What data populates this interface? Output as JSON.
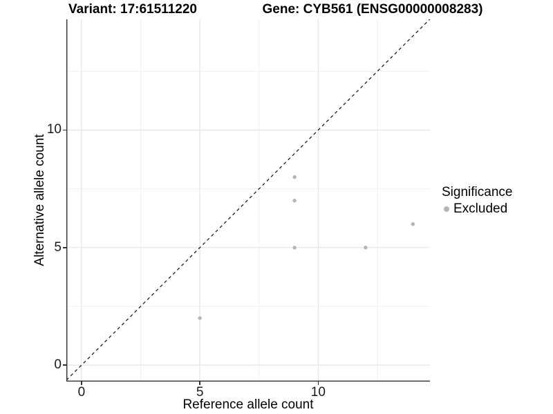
{
  "figure": {
    "title_left": "Variant: 17:61511220",
    "title_right": "Gene: CYB561 (ENSG00000008283)"
  },
  "chart_data": {
    "type": "scatter",
    "title": "Variant: 17:61511220 | Gene: CYB561 (ENSG00000008283)",
    "xlabel": "Reference allele count",
    "ylabel": "Alternative allele count",
    "xlim": [
      -0.64,
      14.72
    ],
    "ylim": [
      -0.7,
      14.71
    ],
    "x_major_ticks": [
      0,
      5,
      10
    ],
    "y_major_ticks": [
      0,
      5,
      10
    ],
    "x_minor_ticks": [
      2.5,
      7.5,
      12.5
    ],
    "y_minor_ticks": [
      2.5,
      7.5,
      12.5
    ],
    "grid": "major+minor",
    "identity_line": {
      "slope": 1,
      "intercept": 0,
      "style": "dashed",
      "color": "#1c1c1c"
    },
    "series": [
      {
        "name": "Excluded",
        "color": "#b5b5b5",
        "points": [
          [
            5,
            2
          ],
          [
            9,
            5
          ],
          [
            9,
            7
          ],
          [
            9,
            8
          ],
          [
            12,
            5
          ],
          [
            14,
            6
          ]
        ]
      }
    ],
    "legend": {
      "title": "Significance",
      "position": "right-center",
      "items": [
        {
          "label": "Excluded",
          "color": "#b5b5b5"
        }
      ]
    }
  },
  "colors": {
    "grid_major": "#e4e4e4",
    "grid_minor": "#f1f1f1",
    "axis_line": "#2f2f2f",
    "tick_label": "#1a1a1a",
    "background": "#ffffff"
  }
}
